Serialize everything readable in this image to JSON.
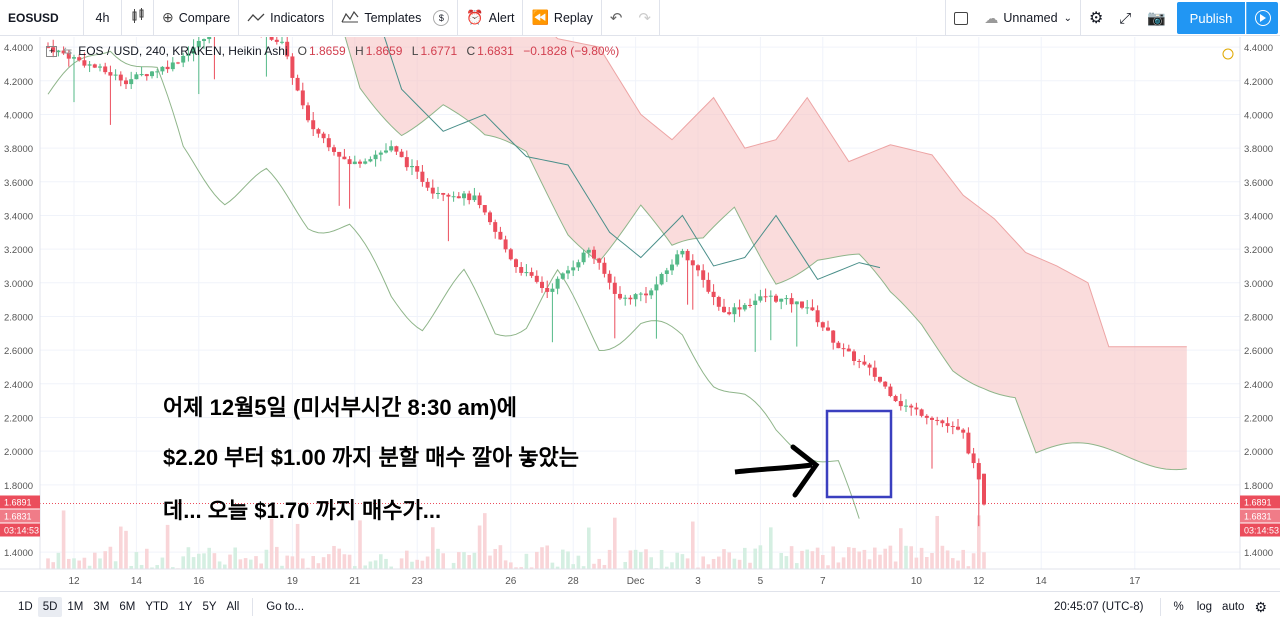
{
  "toolbar": {
    "symbol": "EOSUSD",
    "interval": "4h",
    "compare": "Compare",
    "indicators": "Indicators",
    "templates": "Templates",
    "alert": "Alert",
    "replay": "Replay",
    "layout_name": "Unnamed",
    "publish": "Publish"
  },
  "legend": {
    "title": "EOS / USD, 240, KRAKEN, Heikin Ashi",
    "open_label": "O",
    "open": "1.8659",
    "high_label": "H",
    "high": "1.8659",
    "low_label": "L",
    "low": "1.6771",
    "close_label": "C",
    "close": "1.6831",
    "change": "−0.1828 (−9.80%)"
  },
  "price_axis": {
    "ticks": [
      "4.4000",
      "4.2000",
      "4.0000",
      "3.8000",
      "3.6000",
      "3.4000",
      "3.2000",
      "3.0000",
      "2.8000",
      "2.6000",
      "2.4000",
      "2.2000",
      "2.0000",
      "1.8000",
      "1.4000"
    ],
    "badges": [
      "1.6891",
      "1.6831",
      "03:14:53"
    ]
  },
  "time_axis": {
    "ticks": [
      "12",
      "14",
      "16",
      "19",
      "21",
      "23",
      "26",
      "28",
      "Dec",
      "3",
      "5",
      "7",
      "10",
      "12",
      "14",
      "17"
    ]
  },
  "annotation": {
    "line1": "어제 12월5일 (미서부시간 8:30 am)에",
    "line2": "$2.20 부터 $1.00 까지 분할 매수 깔아 놓았는",
    "line3": "데... 오늘 $1.70 까지 매수가..."
  },
  "bottom": {
    "ranges": [
      "1D",
      "5D",
      "1M",
      "3M",
      "6M",
      "YTD",
      "1Y",
      "5Y",
      "All"
    ],
    "active_range": "5D",
    "goto": "Go to...",
    "clock": "20:45:07 (UTC-8)",
    "percent": "%",
    "log": "log",
    "auto": "auto"
  },
  "colors": {
    "up": "#53b987",
    "down": "#eb4d5c",
    "cloud": "#f7c5c5",
    "accent": "#2196f3"
  },
  "chart_data": {
    "type": "candlestick",
    "ylim": [
      1.3,
      4.46
    ],
    "x_ticks_index": [
      5,
      17,
      29,
      47,
      59,
      71,
      89,
      101,
      113,
      125,
      137,
      149,
      167,
      179,
      191,
      209
    ],
    "candles": []
  }
}
